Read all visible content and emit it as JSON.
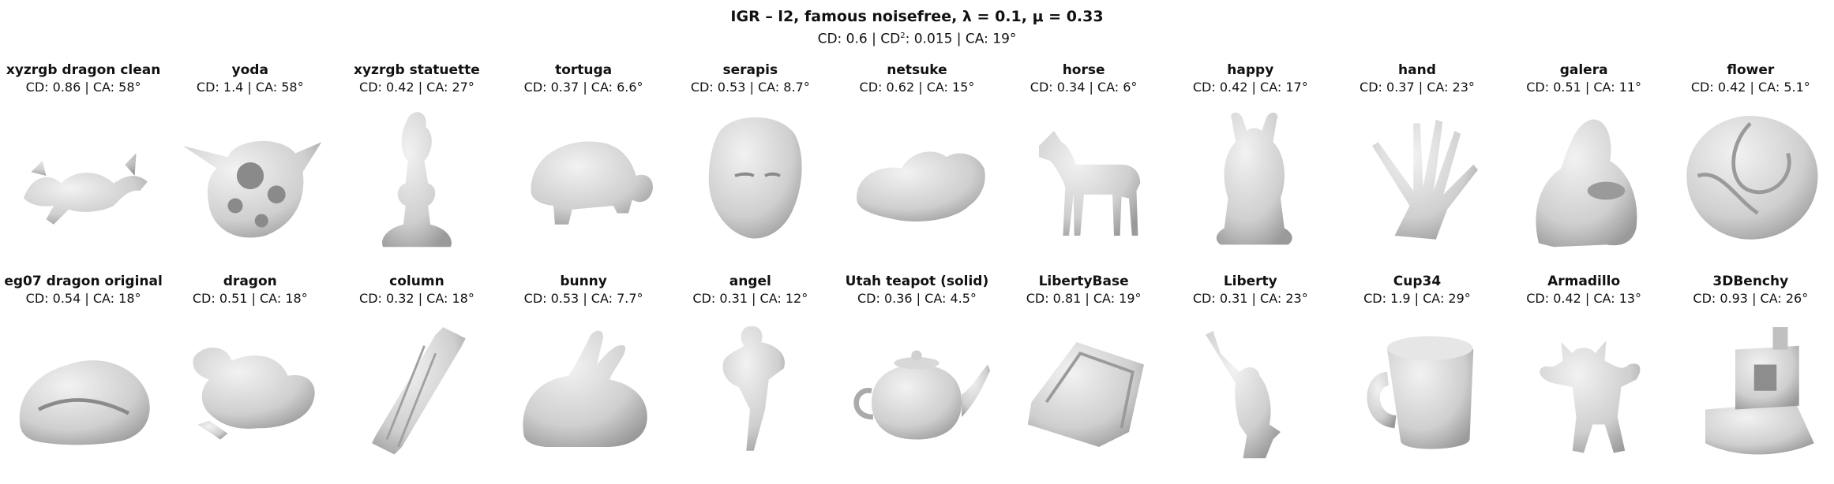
{
  "header": {
    "title": "IGR – l2,  famous noisefree,  λ  =  0.1,  μ  =  0.33",
    "subtitle_pre": "CD: 0.6 | CD",
    "subtitle_sup": "2",
    "subtitle_post": ": 0.015 | CA: 19°"
  },
  "shapes": [
    {
      "name": "xyzrgb dragon clean",
      "metric": "CD: 0.86 | CA: 58°",
      "icon": "dragon-clean"
    },
    {
      "name": "yoda",
      "metric": "CD: 1.4 | CA: 58°",
      "icon": "yoda"
    },
    {
      "name": "xyzrgb statuette",
      "metric": "CD: 0.42 | CA: 27°",
      "icon": "statuette"
    },
    {
      "name": "tortuga",
      "metric": "CD: 0.37 | CA: 6.6°",
      "icon": "tortuga"
    },
    {
      "name": "serapis",
      "metric": "CD: 0.53 | CA: 8.7°",
      "icon": "serapis"
    },
    {
      "name": "netsuke",
      "metric": "CD: 0.62 | CA: 15°",
      "icon": "netsuke"
    },
    {
      "name": "horse",
      "metric": "CD: 0.34 | CA: 6°",
      "icon": "horse"
    },
    {
      "name": "happy",
      "metric": "CD: 0.42 | CA: 17°",
      "icon": "happy"
    },
    {
      "name": "hand",
      "metric": "CD: 0.37 | CA: 23°",
      "icon": "hand"
    },
    {
      "name": "galera",
      "metric": "CD: 0.51 | CA: 11°",
      "icon": "galera"
    },
    {
      "name": "flower",
      "metric": "CD: 0.42 | CA: 5.1°",
      "icon": "flower"
    },
    {
      "name": "eg07 dragon original",
      "metric": "CD: 0.54 | CA: 18°",
      "icon": "dragon-original"
    },
    {
      "name": "dragon",
      "metric": "CD: 0.51 | CA: 18°",
      "icon": "dragon"
    },
    {
      "name": "column",
      "metric": "CD: 0.32 | CA: 18°",
      "icon": "column"
    },
    {
      "name": "bunny",
      "metric": "CD: 0.53 | CA: 7.7°",
      "icon": "bunny"
    },
    {
      "name": "angel",
      "metric": "CD: 0.31 | CA: 12°",
      "icon": "angel"
    },
    {
      "name": "Utah teapot (solid)",
      "metric": "CD: 0.36 | CA: 4.5°",
      "icon": "teapot"
    },
    {
      "name": "LibertyBase",
      "metric": "CD: 0.81 | CA: 19°",
      "icon": "liberty-base"
    },
    {
      "name": "Liberty",
      "metric": "CD: 0.31 | CA: 23°",
      "icon": "liberty"
    },
    {
      "name": "Cup34",
      "metric": "CD: 1.9 | CA: 29°",
      "icon": "cup"
    },
    {
      "name": "Armadillo",
      "metric": "CD: 0.42 | CA: 13°",
      "icon": "armadillo"
    },
    {
      "name": "3DBenchy",
      "metric": "CD: 0.93 | CA: 26°",
      "icon": "benchy"
    }
  ],
  "colors": {
    "mesh_light": "#f2f2f2",
    "mesh_mid": "#cfcfcf",
    "mesh_dark": "#9a9a9a"
  }
}
